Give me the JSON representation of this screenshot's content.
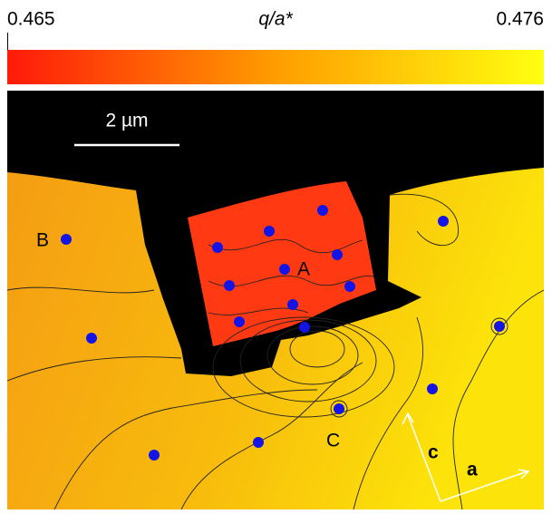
{
  "colorbar": {
    "min": 0.465,
    "label": "q/a*",
    "max": 0.476
  },
  "scale_bar": "2 µm",
  "regions": {
    "A": "A",
    "B": "B",
    "C": "C"
  },
  "axes": {
    "c": "c",
    "a": "a"
  }
}
